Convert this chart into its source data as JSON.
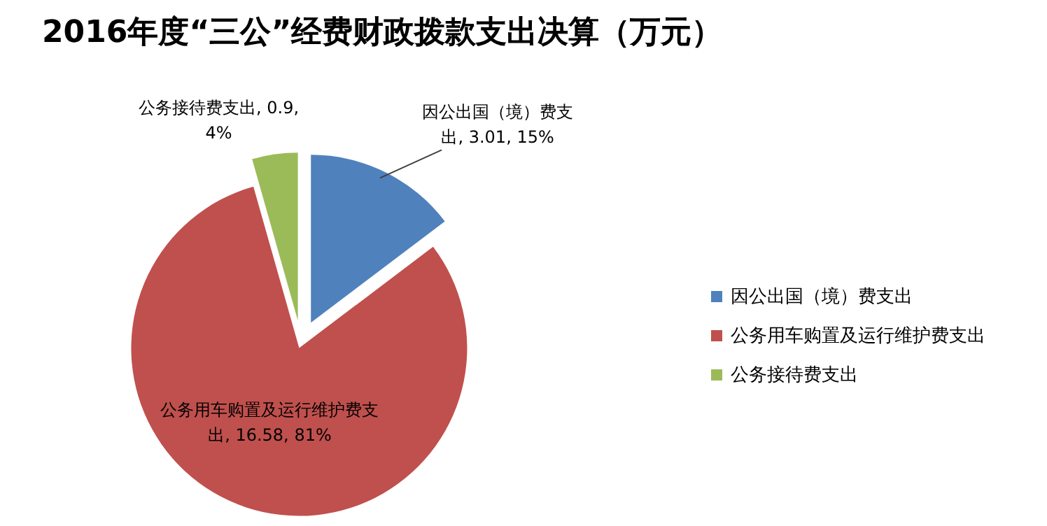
{
  "chart_data": {
    "type": "pie",
    "title": "2016年度“三公”经费财政拨款支出决算（万元）",
    "categories": [
      "因公出国（境）费支出",
      "公务用车购置及运行维护费支出",
      "公务接待费支出"
    ],
    "values": [
      3.01,
      16.58,
      0.9
    ],
    "colors": [
      "#4f81bd",
      "#c0504d",
      "#9bbb59"
    ],
    "value_labels": [
      "因公出国（境）费支出, 3.01, 15%",
      "公务用车购置及运行维护费支出, 16.58, 81%",
      "公务接待费支出, 0.9, 4%"
    ],
    "legend": "right"
  }
}
